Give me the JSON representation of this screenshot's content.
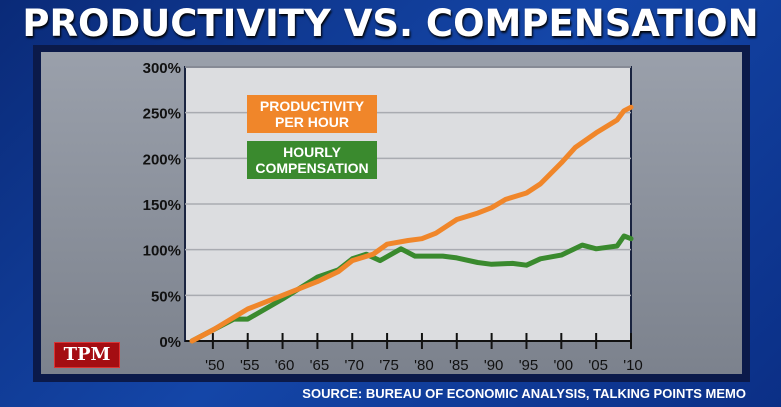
{
  "title": "PRODUCTIVITY VS. COMPENSATION",
  "logo": "TPM",
  "source": "SOURCE: BUREAU OF ECONOMIC ANALYSIS, TALKING POINTS MEMO",
  "chart_data": {
    "type": "line",
    "title": "PRODUCTIVITY VS. COMPENSATION",
    "xlim": [
      1946,
      2010
    ],
    "ylim": [
      0,
      300
    ],
    "grid": true,
    "legend_placement": "top-left",
    "yticks": [
      0,
      50,
      100,
      150,
      200,
      250,
      300
    ],
    "ytick_labels": [
      "0%",
      "50%",
      "100%",
      "150%",
      "200%",
      "250%",
      "300%"
    ],
    "xticks": [
      1950,
      1955,
      1960,
      1965,
      1970,
      1975,
      1980,
      1985,
      1990,
      1995,
      2000,
      2005,
      2010
    ],
    "xtick_labels": [
      "'50",
      "'55",
      "'60",
      "'65",
      "'70",
      "'75",
      "'80",
      "'85",
      "'90",
      "'95",
      "'00",
      "'05",
      "'10"
    ],
    "series": [
      {
        "name": "PRODUCTIVITY PER HOUR",
        "color": "#f0862a",
        "x": [
          1947,
          1950,
          1955,
          1960,
          1965,
          1968,
          1970,
          1973,
          1975,
          1978,
          1980,
          1982,
          1985,
          1988,
          1990,
          1992,
          1995,
          1997,
          2000,
          2002,
          2005,
          2008,
          2009,
          2010
        ],
        "y": [
          0,
          12,
          35,
          50,
          65,
          76,
          88,
          95,
          106,
          110,
          112,
          118,
          133,
          140,
          146,
          155,
          162,
          172,
          195,
          212,
          228,
          242,
          252,
          256
        ]
      },
      {
        "name": "HOURLY COMPENSATION",
        "color": "#3a8a2e",
        "x": [
          1947,
          1950,
          1953,
          1955,
          1960,
          1965,
          1968,
          1970,
          1972,
          1974,
          1977,
          1979,
          1983,
          1985,
          1988,
          1990,
          1993,
          1995,
          1997,
          2000,
          2003,
          2005,
          2008,
          2009,
          2010
        ],
        "y": [
          0,
          12,
          24,
          24,
          46,
          70,
          78,
          90,
          95,
          88,
          101,
          93,
          93,
          91,
          86,
          84,
          85,
          83,
          90,
          94,
          105,
          101,
          104,
          115,
          112
        ]
      }
    ]
  }
}
